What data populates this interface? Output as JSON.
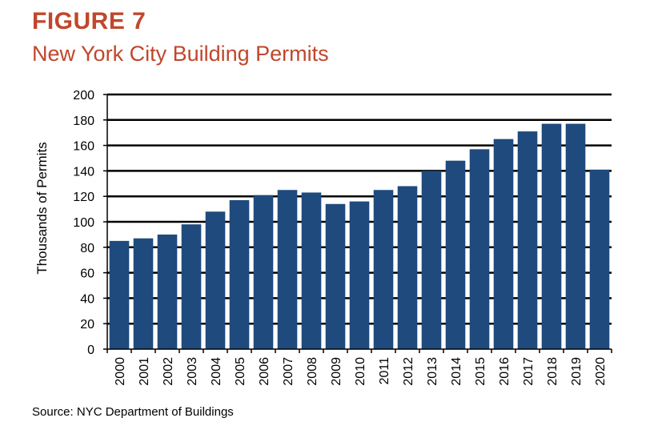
{
  "figure_label": "FIGURE 7",
  "source": "Source: NYC Department of Buildings",
  "colors": {
    "title": "#c0462c",
    "bar": "#1f4a7d",
    "grid": "#000000"
  },
  "chart_data": {
    "type": "bar",
    "title": "New York City Building Permits",
    "xlabel": "",
    "ylabel": "Thousands of Permits",
    "ylim": [
      0,
      200
    ],
    "yticks": [
      0,
      20,
      40,
      60,
      80,
      100,
      120,
      140,
      160,
      180,
      200
    ],
    "grid": true,
    "categories": [
      "2000",
      "2001",
      "2002",
      "2003",
      "2004",
      "2005",
      "2006",
      "2007",
      "2008",
      "2009",
      "2010",
      "2011",
      "2012",
      "2013",
      "2014",
      "2015",
      "2016",
      "2017",
      "2018",
      "2019",
      "2020"
    ],
    "values": [
      85,
      87,
      90,
      98,
      108,
      117,
      121,
      125,
      123,
      114,
      116,
      125,
      128,
      140,
      148,
      157,
      165,
      171,
      177,
      177,
      141
    ]
  }
}
